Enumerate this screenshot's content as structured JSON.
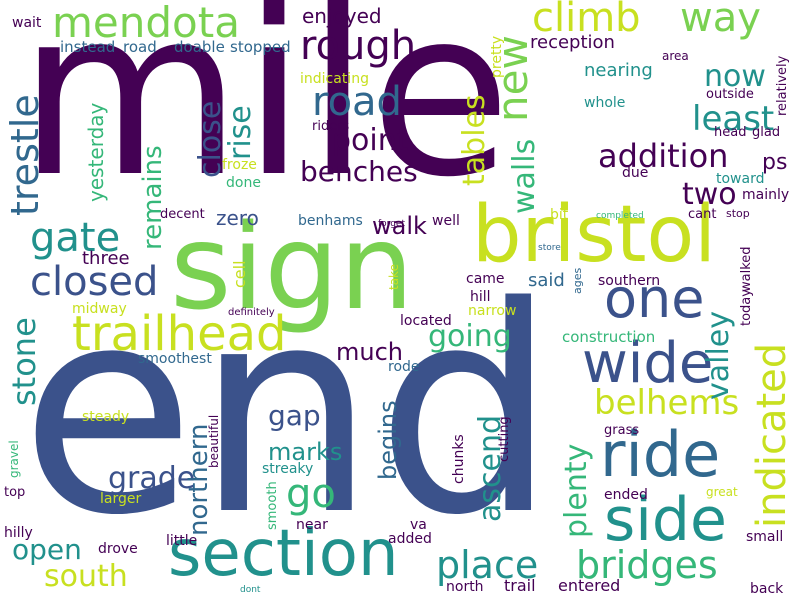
{
  "palette": {
    "dark_purple": "#440154",
    "indigo": "#3b528b",
    "slate": "#31688e",
    "teal": "#21918c",
    "green": "#35b779",
    "lime": "#7ad151",
    "yellow": "#c8e020",
    "gold": "#fde725"
  },
  "words": [
    {
      "text": "mile"
    },
    {
      "text": "end"
    },
    {
      "text": "sign"
    },
    {
      "text": "bristol"
    },
    {
      "text": "section"
    },
    {
      "text": "side"
    },
    {
      "text": "ride"
    },
    {
      "text": "one"
    },
    {
      "text": "wide"
    },
    {
      "text": "trailhead"
    },
    {
      "text": "mendota"
    },
    {
      "text": "rough"
    },
    {
      "text": "road"
    },
    {
      "text": "climb"
    },
    {
      "text": "way"
    },
    {
      "text": "new"
    },
    {
      "text": "place"
    },
    {
      "text": "bridges"
    },
    {
      "text": "indicated"
    },
    {
      "text": "trestle"
    },
    {
      "text": "point"
    },
    {
      "text": "benches"
    },
    {
      "text": "addition"
    },
    {
      "text": "least"
    },
    {
      "text": "now"
    },
    {
      "text": "gate"
    },
    {
      "text": "closed"
    },
    {
      "text": "stone"
    },
    {
      "text": "belhems"
    },
    {
      "text": "valley"
    },
    {
      "text": "go"
    },
    {
      "text": "tables"
    },
    {
      "text": "walls"
    },
    {
      "text": "two"
    },
    {
      "text": "ps"
    },
    {
      "text": "close"
    },
    {
      "text": "rise"
    },
    {
      "text": "remains"
    },
    {
      "text": "going"
    },
    {
      "text": "plenty"
    },
    {
      "text": "ascend"
    },
    {
      "text": "grade"
    },
    {
      "text": "gap"
    },
    {
      "text": "open"
    },
    {
      "text": "south"
    },
    {
      "text": "northern"
    },
    {
      "text": "begins"
    },
    {
      "text": "marks"
    },
    {
      "text": "much"
    },
    {
      "text": "walk"
    },
    {
      "text": "zero"
    },
    {
      "text": "enjoyed"
    },
    {
      "text": "reception"
    },
    {
      "text": "nearing"
    },
    {
      "text": "yesterday"
    },
    {
      "text": "three"
    },
    {
      "text": "cell"
    },
    {
      "text": "instead"
    },
    {
      "text": "road"
    },
    {
      "text": "doable"
    },
    {
      "text": "stopped"
    },
    {
      "text": "indicating"
    },
    {
      "text": "pretty"
    },
    {
      "text": "riders"
    },
    {
      "text": "froze"
    },
    {
      "text": "done"
    },
    {
      "text": "decent"
    },
    {
      "text": "benhams"
    },
    {
      "text": "well"
    },
    {
      "text": "bit"
    },
    {
      "text": "completed"
    },
    {
      "text": "cant"
    },
    {
      "text": "stop"
    },
    {
      "text": "toward"
    },
    {
      "text": "mainly"
    },
    {
      "text": "due"
    },
    {
      "text": "whole"
    },
    {
      "text": "outside"
    },
    {
      "text": "head"
    },
    {
      "text": "glad"
    },
    {
      "text": "relatively"
    },
    {
      "text": "area"
    },
    {
      "text": "wait"
    },
    {
      "text": "forget"
    },
    {
      "text": "store"
    },
    {
      "text": "said"
    },
    {
      "text": "came"
    },
    {
      "text": "hill"
    },
    {
      "text": "take"
    },
    {
      "text": "southern"
    },
    {
      "text": "ages"
    },
    {
      "text": "construction"
    },
    {
      "text": "today"
    },
    {
      "text": "walked"
    },
    {
      "text": "midway"
    },
    {
      "text": "definitely"
    },
    {
      "text": "located"
    },
    {
      "text": "narrow"
    },
    {
      "text": "smoothest"
    },
    {
      "text": "rode"
    },
    {
      "text": "steady"
    },
    {
      "text": "beautiful"
    },
    {
      "text": "streaky"
    },
    {
      "text": "cutting"
    },
    {
      "text": "chunks"
    },
    {
      "text": "grass"
    },
    {
      "text": "gravel"
    },
    {
      "text": "top"
    },
    {
      "text": "larger"
    },
    {
      "text": "smooth"
    },
    {
      "text": "near"
    },
    {
      "text": "ended"
    },
    {
      "text": "great"
    },
    {
      "text": "hilly"
    },
    {
      "text": "drove"
    },
    {
      "text": "little"
    },
    {
      "text": "va"
    },
    {
      "text": "added"
    },
    {
      "text": "small"
    },
    {
      "text": "north"
    },
    {
      "text": "trail"
    },
    {
      "text": "entered"
    },
    {
      "text": "back"
    },
    {
      "text": "dont"
    }
  ]
}
